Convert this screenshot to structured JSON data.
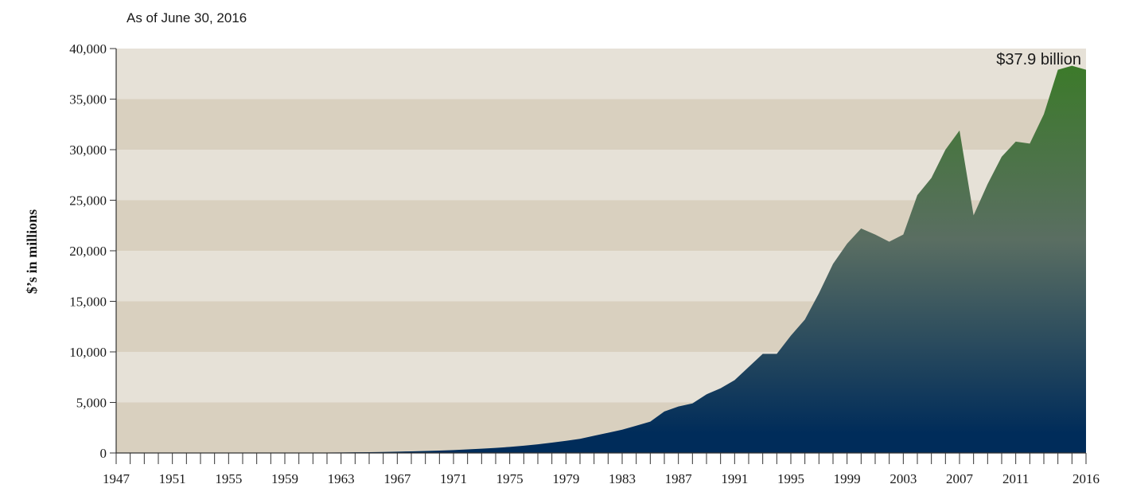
{
  "chart_data": {
    "type": "area",
    "subtitle": "As of June 30, 2016",
    "ylabel": "$’s in millions",
    "xlabel": "",
    "ylim": [
      0,
      40000
    ],
    "xlim": [
      1947,
      2016
    ],
    "grid": "alternating horizontal bands",
    "annotation": "$37.9 billion",
    "yticks": [
      {
        "value": 0,
        "label": "0"
      },
      {
        "value": 5000,
        "label": "5,000"
      },
      {
        "value": 10000,
        "label": "10,000"
      },
      {
        "value": 15000,
        "label": "15,000"
      },
      {
        "value": 20000,
        "label": "20,000"
      },
      {
        "value": 25000,
        "label": "25,000"
      },
      {
        "value": 30000,
        "label": "30,000"
      },
      {
        "value": 35000,
        "label": "35,000"
      },
      {
        "value": 40000,
        "label": "40,000"
      }
    ],
    "xtick_labels": [
      "1947",
      "1951",
      "1955",
      "1959",
      "1963",
      "1967",
      "1971",
      "1975",
      "1979",
      "1983",
      "1987",
      "1991",
      "1995",
      "1999",
      "2003",
      "2007",
      "2011",
      "2016"
    ],
    "x": [
      1947,
      1948,
      1949,
      1950,
      1951,
      1952,
      1953,
      1954,
      1955,
      1956,
      1957,
      1958,
      1959,
      1960,
      1961,
      1962,
      1963,
      1964,
      1965,
      1966,
      1967,
      1968,
      1969,
      1970,
      1971,
      1972,
      1973,
      1974,
      1975,
      1976,
      1977,
      1978,
      1979,
      1980,
      1981,
      1982,
      1983,
      1984,
      1985,
      1986,
      1987,
      1988,
      1989,
      1990,
      1991,
      1992,
      1993,
      1994,
      1995,
      1996,
      1997,
      1998,
      1999,
      2000,
      2001,
      2002,
      2003,
      2004,
      2005,
      2006,
      2007,
      2008,
      2009,
      2010,
      2011,
      2012,
      2013,
      2014,
      2015,
      2016
    ],
    "values": [
      1,
      1,
      2,
      2,
      3,
      4,
      5,
      6,
      8,
      10,
      12,
      15,
      20,
      25,
      30,
      40,
      50,
      65,
      80,
      100,
      130,
      160,
      200,
      240,
      290,
      350,
      420,
      500,
      600,
      720,
      860,
      1020,
      1200,
      1400,
      1700,
      2000,
      2300,
      2700,
      3100,
      4100,
      4600,
      4900,
      5800,
      6400,
      7200,
      8500,
      9800,
      9800,
      11600,
      13200,
      15800,
      18700,
      20700,
      22200,
      21600,
      20900,
      21600,
      25500,
      27200,
      30000,
      31900,
      23500,
      26600,
      29300,
      30800,
      30600,
      33500,
      37900,
      38300,
      37900
    ],
    "colors": {
      "area_top": "#3c7a2a",
      "area_mid": "#5a6e62",
      "area_bottom": "#002c5a",
      "band_light": "#e6e1d7",
      "band_dark": "#d9d0bf",
      "axis": "#333333"
    }
  }
}
